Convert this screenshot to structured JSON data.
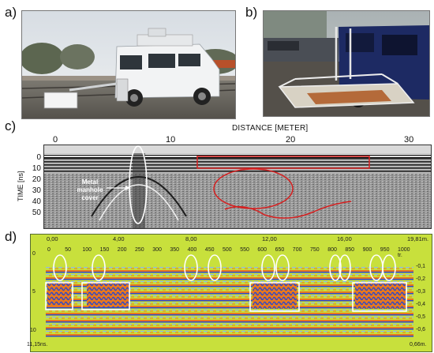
{
  "panels": {
    "a": "a)",
    "b": "b)",
    "c": "c)",
    "d": "d)"
  },
  "panel_c": {
    "x_title": "DISTANCE [METER]",
    "x_ticks": [
      "0",
      "10",
      "20",
      "30"
    ],
    "y_label": "TIME [ns]",
    "y_ticks": [
      "0",
      "10",
      "20",
      "30",
      "40",
      "50"
    ],
    "annotation_line1": "Metal",
    "annotation_line2": "manhole",
    "annotation_line3": "cover",
    "colors": {
      "highlight": "#d62020",
      "ellipse": "#ffffff"
    }
  },
  "panel_d": {
    "top_ticks": [
      "0,00",
      "4,00",
      "8,00",
      "12,00",
      "16,00",
      "19,81m."
    ],
    "scan_ticks": [
      "0",
      "50",
      "100",
      "150",
      "200",
      "250",
      "300",
      "350",
      "400",
      "450",
      "500",
      "550",
      "600",
      "650",
      "700",
      "750",
      "800",
      "850",
      "900",
      "950",
      "1000 tr."
    ],
    "left_ticks": [
      "0",
      "5",
      "10"
    ],
    "right_ticks": [
      "-0,1",
      "-0,2",
      "-0,3",
      "-0,4",
      "-0,5",
      "-0,6"
    ],
    "bottom_left": "11,15ns.",
    "bottom_right": "0,66m.",
    "colors": {
      "background": "#c8e03c",
      "band_orange": "#e8781e",
      "band_blue": "#3048c8",
      "markers": "#ffffff"
    }
  }
}
